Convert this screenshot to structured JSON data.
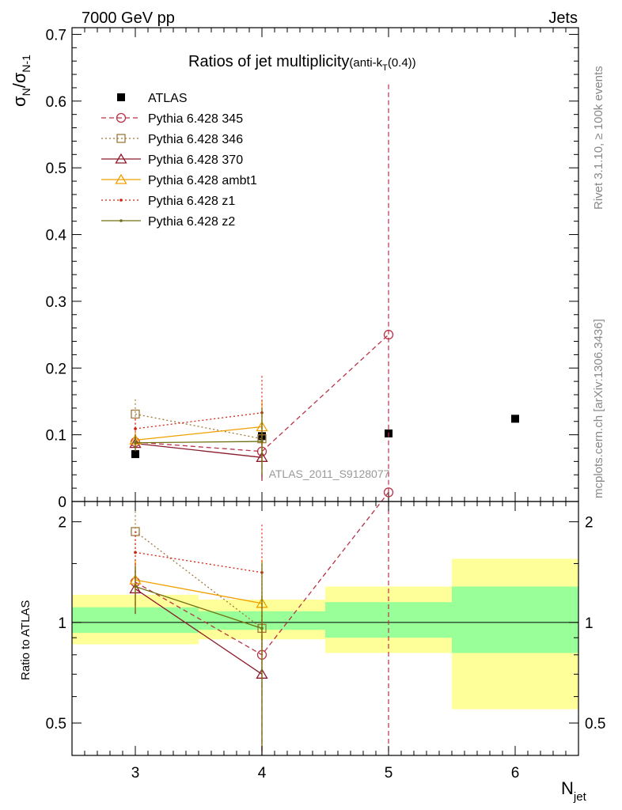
{
  "header": {
    "left": "7000 GeV pp",
    "right": "Jets"
  },
  "side_text": {
    "rivet": "Rivet 3.1.10, ≥ 100k events",
    "mcplots": "mcplots.cern.ch [arXiv:1306.3436]"
  },
  "watermark": "ATLAS_2011_S9128077",
  "chart_data": [
    {
      "type": "scatter",
      "panel": "main",
      "title": "Ratios of jet multiplicity",
      "title_suffix": "(anti-k",
      "title_sub": "T",
      "title_tail": "(0.4))",
      "ylabel_main": "σ",
      "ylabel_sub1": "N",
      "ylabel_mid": "/σ",
      "ylabel_sub2": "N-1",
      "xlim": [
        2.5,
        6.5
      ],
      "ylim": [
        0,
        0.71
      ],
      "yticks": [
        0,
        0.1,
        0.2,
        0.3,
        0.4,
        0.5,
        0.6,
        0.7
      ],
      "ytick_labels": [
        "0",
        "0.1",
        "0.2",
        "0.3",
        "0.4",
        "0.5",
        "0.6",
        "0.7"
      ],
      "legend_position": "top-left",
      "series": [
        {
          "name": "ATLAS",
          "color": "#000000",
          "marker": "filled-square",
          "line": "none",
          "x": [
            3,
            4,
            5,
            6
          ],
          "y": [
            0.071,
            0.098,
            0.102,
            0.124
          ]
        },
        {
          "name": "Pythia 6.428 345",
          "color": "#b83248",
          "marker": "open-circle",
          "line": "dashed",
          "x": [
            3,
            4,
            5
          ],
          "y": [
            0.089,
            0.075,
            0.25
          ],
          "err": [
            0.012,
            0.04,
            0.375
          ]
        },
        {
          "name": "Pythia 6.428 346",
          "color": "#a07838",
          "marker": "open-square",
          "line": "dotted",
          "x": [
            3,
            4
          ],
          "y": [
            0.131,
            0.094
          ],
          "err": [
            0.022,
            0.035
          ]
        },
        {
          "name": "Pythia 6.428 370",
          "color": "#8b1a2a",
          "marker": "open-triangle",
          "line": "solid",
          "x": [
            3,
            4
          ],
          "y": [
            0.087,
            0.066
          ],
          "err": [
            0.012,
            0.035
          ]
        },
        {
          "name": "Pythia 6.428 ambt1",
          "color": "#f0a000",
          "marker": "open-triangle",
          "line": "solid",
          "x": [
            3,
            4
          ],
          "y": [
            0.092,
            0.112
          ],
          "err": [
            0.012,
            0.04
          ]
        },
        {
          "name": "Pythia 6.428 z1",
          "color": "#d42010",
          "marker": "dot",
          "line": "dotted",
          "x": [
            3,
            4
          ],
          "y": [
            0.109,
            0.133
          ],
          "err": [
            0.015,
            0.055
          ]
        },
        {
          "name": "Pythia 6.428 z2",
          "color": "#707010",
          "marker": "dot",
          "line": "solid",
          "x": [
            3,
            4
          ],
          "y": [
            0.088,
            0.09
          ],
          "err": [
            0.012,
            0.05
          ]
        }
      ]
    },
    {
      "type": "scatter",
      "panel": "ratio",
      "ylabel": "Ratio to ATLAS",
      "xlabel_main": "N",
      "xlabel_sub": "jet",
      "xlim": [
        2.5,
        6.5
      ],
      "ylim": [
        0.4,
        2.3
      ],
      "log_y": true,
      "yticks": [
        0.5,
        1,
        2
      ],
      "ytick_labels": [
        "0.5",
        "1",
        "2"
      ],
      "xticks": [
        3,
        4,
        5,
        6
      ],
      "xtick_labels": [
        "3",
        "4",
        "5",
        "6"
      ],
      "bands": [
        {
          "x0": 2.5,
          "x1": 3.5,
          "green": [
            0.93,
            1.11
          ],
          "yellow": [
            0.86,
            1.21
          ]
        },
        {
          "x0": 3.5,
          "x1": 4.5,
          "green": [
            0.95,
            1.08
          ],
          "yellow": [
            0.89,
            1.17
          ]
        },
        {
          "x0": 4.5,
          "x1": 5.5,
          "green": [
            0.9,
            1.15
          ],
          "yellow": [
            0.81,
            1.28
          ]
        },
        {
          "x0": 5.5,
          "x1": 6.5,
          "green": [
            0.81,
            1.28
          ],
          "yellow": [
            0.55,
            1.55
          ]
        }
      ],
      "series": [
        {
          "name": "Pythia 6.428 345",
          "color": "#b83248",
          "marker": "open-circle",
          "line": "dashed",
          "x": [
            3,
            4,
            5
          ],
          "y": [
            1.32,
            0.8,
            2.45
          ],
          "err": [
            0.2,
            0.4,
            4.0
          ]
        },
        {
          "name": "Pythia 6.428 346",
          "color": "#a07838",
          "marker": "open-square",
          "line": "dotted",
          "x": [
            3,
            4
          ],
          "y": [
            1.87,
            0.96
          ],
          "err": [
            0.28,
            0.35
          ]
        },
        {
          "name": "Pythia 6.428 370",
          "color": "#8b1a2a",
          "marker": "open-triangle",
          "line": "solid",
          "x": [
            3,
            4
          ],
          "y": [
            1.26,
            0.7
          ],
          "err": [
            0.2,
            0.35
          ]
        },
        {
          "name": "Pythia 6.428 ambt1",
          "color": "#f0a000",
          "marker": "open-triangle",
          "line": "solid",
          "x": [
            3,
            4
          ],
          "y": [
            1.34,
            1.14
          ],
          "err": [
            0.2,
            0.4
          ]
        },
        {
          "name": "Pythia 6.428 z1",
          "color": "#d42010",
          "marker": "dot",
          "line": "dotted",
          "x": [
            3,
            4
          ],
          "y": [
            1.62,
            1.41
          ],
          "err": [
            0.25,
            0.55
          ]
        },
        {
          "name": "Pythia 6.428 z2",
          "color": "#707010",
          "marker": "dot",
          "line": "solid",
          "x": [
            3,
            4
          ],
          "y": [
            1.28,
            0.96
          ],
          "err": [
            0.2,
            0.55
          ]
        }
      ]
    }
  ]
}
